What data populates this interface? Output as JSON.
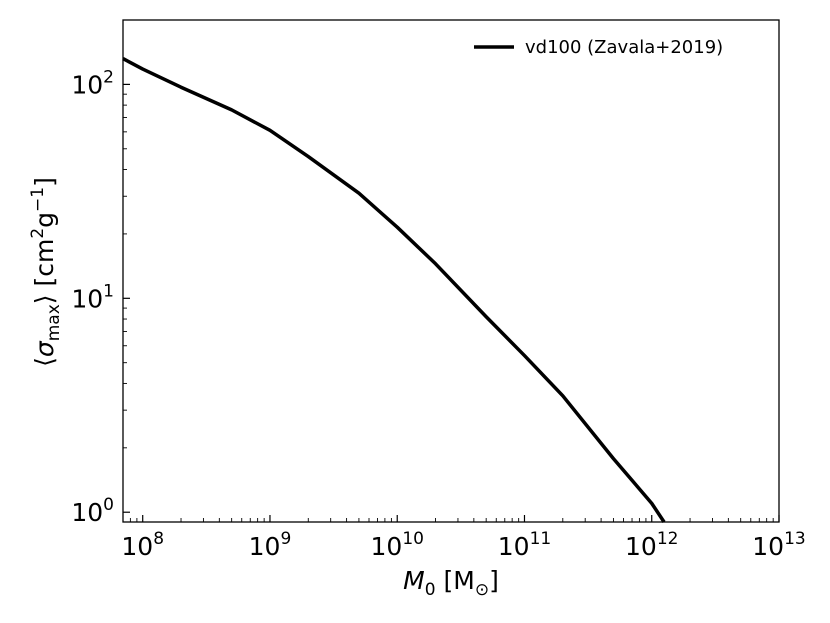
{
  "chart_data": {
    "type": "line",
    "title": "",
    "xlabel": {
      "symbol": "M",
      "subscript": "0",
      "unit_open": " [M",
      "unit_symbol": "⊙",
      "unit_close": "]"
    },
    "ylabel": {
      "bracket_open": "⟨",
      "symbol": "σ",
      "subscript": "max",
      "bracket_close": "⟩",
      "unit_open": " [cm",
      "unit_exp1": "2",
      "unit_mid": "g",
      "unit_exp2": "−1",
      "unit_close": "]"
    },
    "xscale": "log",
    "yscale": "log",
    "xlim": [
      70000000,
      10000000000000
    ],
    "ylim": [
      0.9,
      200
    ],
    "grid": false,
    "legend_position": "top-right",
    "x_ticks": [
      {
        "value": 100000000,
        "base": "10",
        "exp": "8"
      },
      {
        "value": 1000000000,
        "base": "10",
        "exp": "9"
      },
      {
        "value": 10000000000,
        "base": "10",
        "exp": "10"
      },
      {
        "value": 100000000000,
        "base": "10",
        "exp": "11"
      },
      {
        "value": 1000000000000,
        "base": "10",
        "exp": "12"
      },
      {
        "value": 10000000000000,
        "base": "10",
        "exp": "13"
      }
    ],
    "y_ticks": [
      {
        "value": 1,
        "base": "10",
        "exp": "0"
      },
      {
        "value": 10,
        "base": "10",
        "exp": "1"
      },
      {
        "value": 100,
        "base": "10",
        "exp": "2"
      }
    ],
    "series": [
      {
        "name": "vd100 (Zavala+2019)",
        "color": "#000000",
        "x": [
          70000000,
          100000000,
          200000000,
          500000000,
          1000000000,
          2000000000,
          5000000000,
          10000000000,
          20000000000,
          50000000000,
          100000000000,
          200000000000,
          500000000000,
          1000000000000,
          1250000000000
        ],
        "y": [
          132,
          118,
          97,
          76,
          61,
          46,
          31,
          21.5,
          14.5,
          8.2,
          5.4,
          3.5,
          1.78,
          1.1,
          0.9
        ]
      }
    ]
  }
}
